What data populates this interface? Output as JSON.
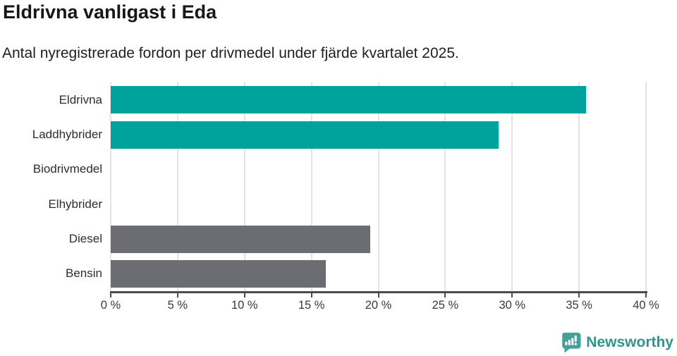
{
  "header": {
    "title": "Eldrivna vanligast i Eda",
    "subtitle": "Antal nyregistrerade fordon per drivmedel under fjärde kvartalet 2025."
  },
  "chart_data": {
    "type": "bar",
    "orientation": "horizontal",
    "title": "Eldrivna vanligast i Eda",
    "subtitle": "Antal nyregistrerade fordon per drivmedel under fjärde kvartalet 2025.",
    "categories": [
      "Eldrivna",
      "Laddhybrider",
      "Biodrivmedel",
      "Elhybrider",
      "Diesel",
      "Bensin"
    ],
    "values": [
      35.5,
      29.0,
      0,
      0,
      19.4,
      16.1
    ],
    "bar_colors": [
      "#00a39b",
      "#00a39b",
      "#6c6c73",
      "#6c6c73",
      "#6c6c73",
      "#6c6c73"
    ],
    "unit": "%",
    "xlabel": "",
    "ylabel": "",
    "xlim": [
      0,
      40
    ],
    "x_ticks": [
      0,
      5,
      10,
      15,
      20,
      25,
      30,
      35,
      40
    ],
    "x_tick_labels": [
      "0 %",
      "5 %",
      "10 %",
      "15 %",
      "20 %",
      "25 %",
      "30 %",
      "35 %",
      "40 %"
    ],
    "grid": true,
    "legend": false
  },
  "footer": {
    "brand": "Newsworthy"
  },
  "colors": {
    "teal": "#00a39b",
    "gray": "#6c6c73",
    "gridline": "#e4e4e4",
    "axis": "#4c4c4c",
    "logo_teal": "#32948f",
    "logo_icon_fill": "#44a09b"
  }
}
